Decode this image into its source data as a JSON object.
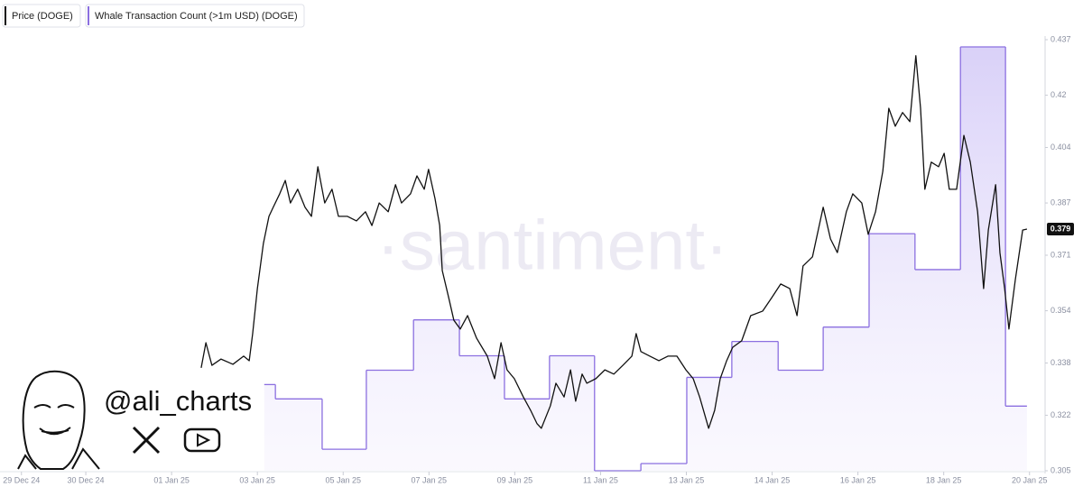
{
  "chart_data": {
    "type": "line",
    "legend": [
      "Price (DOGE)",
      "Whale Transaction Count (>1m USD) (DOGE)"
    ],
    "watermark": "·santiment·",
    "branding": "@ali_charts",
    "current_value": 0.379,
    "xlim": [
      -4,
      20.3
    ],
    "xticks": [
      {
        "value": -3.5,
        "label": "29 Dec 24"
      },
      {
        "value": -2,
        "label": "30 Dec 24"
      },
      {
        "value": 0,
        "label": "01 Jan 25"
      },
      {
        "value": 2,
        "label": "03 Jan 25"
      },
      {
        "value": 4,
        "label": "05 Jan 25"
      },
      {
        "value": 6,
        "label": "07 Jan 25"
      },
      {
        "value": 8,
        "label": "09 Jan 25"
      },
      {
        "value": 10,
        "label": "11 Jan 25"
      },
      {
        "value": 12,
        "label": "13 Jan 25"
      },
      {
        "value": 14,
        "label": "14 Jan 25"
      },
      {
        "value": 16,
        "label": "16 Jan 25"
      },
      {
        "value": 18,
        "label": "18 Jan 25"
      },
      {
        "value": 20,
        "label": "20 Jan 25"
      }
    ],
    "ylim": [
      0.305,
      0.437
    ],
    "yticks": [
      0.305,
      0.322,
      0.338,
      0.354,
      0.371,
      0.387,
      0.404,
      0.42,
      0.437
    ],
    "y2lim": [
      0,
      60
    ],
    "series": [
      {
        "name": "Price (DOGE)",
        "color": "#111111",
        "x": [
          0.69,
          0.8,
          0.94,
          1.15,
          1.43,
          1.68,
          1.81,
          1.89,
          2.0,
          2.14,
          2.27,
          2.37,
          2.52,
          2.65,
          2.77,
          2.94,
          3.11,
          3.26,
          3.41,
          3.57,
          3.74,
          3.89,
          4.1,
          4.31,
          4.52,
          4.67,
          4.84,
          5.05,
          5.22,
          5.36,
          5.57,
          5.72,
          5.89,
          5.99,
          6.14,
          6.25,
          6.31,
          6.46,
          6.58,
          6.73,
          6.9,
          7.11,
          7.36,
          7.53,
          7.68,
          7.82,
          7.99,
          8.2,
          8.37,
          8.52,
          8.62,
          8.83,
          8.96,
          9.15,
          9.3,
          9.42,
          9.57,
          9.68,
          9.89,
          10.1,
          10.31,
          10.52,
          10.73,
          10.83,
          10.94,
          11.15,
          11.36,
          11.57,
          11.78,
          11.99,
          12.16,
          12.31,
          12.52,
          12.66,
          12.79,
          12.94,
          13.08,
          13.29,
          13.5,
          13.78,
          13.99,
          14.2,
          14.41,
          14.58,
          14.72,
          14.94,
          15.19,
          15.36,
          15.52,
          15.73,
          15.88,
          16.09,
          16.24,
          16.41,
          16.58,
          16.72,
          16.87,
          17.04,
          17.21,
          17.35,
          17.46,
          17.56,
          17.71,
          17.88,
          18.01,
          18.13,
          18.3,
          18.47,
          18.62,
          18.79,
          18.93,
          19.04,
          19.21,
          19.31,
          19.42,
          19.52,
          19.67,
          19.84,
          19.94
        ],
        "values": [
          0.3365,
          0.3442,
          0.3373,
          0.3392,
          0.3376,
          0.3401,
          0.3387,
          0.347,
          0.3608,
          0.3746,
          0.3829,
          0.3857,
          0.3898,
          0.3939,
          0.387,
          0.3912,
          0.3857,
          0.3829,
          0.3981,
          0.387,
          0.3912,
          0.3829,
          0.3829,
          0.3815,
          0.3843,
          0.3801,
          0.387,
          0.3843,
          0.3926,
          0.387,
          0.3898,
          0.3953,
          0.3912,
          0.3973,
          0.3884,
          0.3801,
          0.3663,
          0.358,
          0.3511,
          0.3484,
          0.3525,
          0.3456,
          0.3401,
          0.3332,
          0.3442,
          0.3359,
          0.3332,
          0.3276,
          0.3235,
          0.3194,
          0.318,
          0.3249,
          0.3318,
          0.3276,
          0.3359,
          0.3263,
          0.3346,
          0.3318,
          0.3332,
          0.3359,
          0.3346,
          0.3373,
          0.3401,
          0.347,
          0.3415,
          0.3401,
          0.3387,
          0.3401,
          0.3401,
          0.3359,
          0.3332,
          0.3276,
          0.318,
          0.3235,
          0.3332,
          0.3387,
          0.3428,
          0.3448,
          0.3525,
          0.3539,
          0.358,
          0.3622,
          0.3608,
          0.3525,
          0.3677,
          0.3705,
          0.3857,
          0.376,
          0.3718,
          0.3843,
          0.3898,
          0.387,
          0.3774,
          0.3843,
          0.3967,
          0.416,
          0.4105,
          0.4147,
          0.4119,
          0.4321,
          0.416,
          0.3912,
          0.3995,
          0.3981,
          0.4022,
          0.3912,
          0.3912,
          0.4077,
          0.3995,
          0.3843,
          0.3608,
          0.3787,
          0.3926,
          0.3718,
          0.3608,
          0.3484,
          0.3636,
          0.3787,
          0.379
        ]
      },
      {
        "name": "Whale Transaction Count (>1m USD) (DOGE)",
        "color": "#8b6fe0",
        "axis": "y2",
        "bins": [
          2.16,
          2.42,
          3.51,
          4.54,
          5.64,
          6.71,
          7.76,
          8.81,
          9.86,
          10.94,
          12.01,
          13.06,
          14.14,
          15.19,
          16.26,
          17.33,
          18.39,
          19.44,
          19.94
        ],
        "values": [
          12,
          10,
          3,
          14,
          21,
          16,
          10,
          16,
          0,
          1,
          13,
          18,
          14,
          20,
          33,
          28,
          59,
          9
        ]
      }
    ]
  }
}
